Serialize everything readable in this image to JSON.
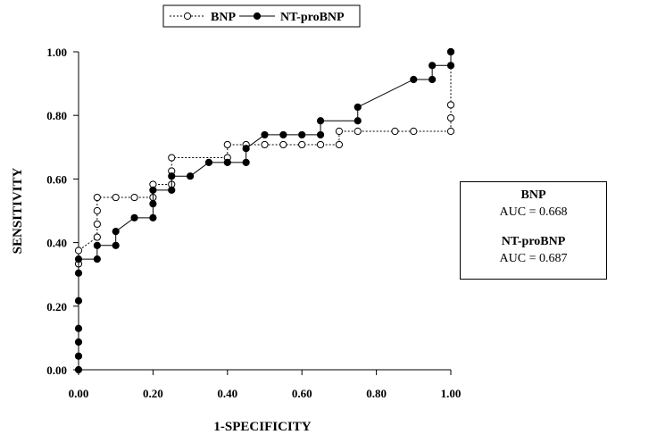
{
  "chart_data": {
    "type": "line",
    "title": "",
    "xlabel": "1-SPECIFICITY",
    "ylabel": "SENSITIVITY",
    "xlim": [
      0,
      1
    ],
    "ylim": [
      0,
      1
    ],
    "x_ticks": [
      "0.00",
      "0.20",
      "0.40",
      "0.60",
      "0.80",
      "1.00"
    ],
    "y_ticks": [
      "0.00",
      "0.20",
      "0.40",
      "0.60",
      "0.80",
      "1.00"
    ],
    "grid": false,
    "legend_position": "top-left",
    "series": [
      {
        "name": "BNP",
        "marker": "open-circle",
        "line_style": "dotted",
        "points": [
          [
            0.0,
            0.333
          ],
          [
            0.0,
            0.375
          ],
          [
            0.05,
            0.417
          ],
          [
            0.05,
            0.458
          ],
          [
            0.05,
            0.5
          ],
          [
            0.05,
            0.542
          ],
          [
            0.1,
            0.542
          ],
          [
            0.15,
            0.542
          ],
          [
            0.2,
            0.542
          ],
          [
            0.2,
            0.583
          ],
          [
            0.25,
            0.583
          ],
          [
            0.25,
            0.625
          ],
          [
            0.25,
            0.667
          ],
          [
            0.4,
            0.667
          ],
          [
            0.4,
            0.708
          ],
          [
            0.45,
            0.708
          ],
          [
            0.5,
            0.708
          ],
          [
            0.55,
            0.708
          ],
          [
            0.6,
            0.708
          ],
          [
            0.65,
            0.708
          ],
          [
            0.7,
            0.708
          ],
          [
            0.7,
            0.75
          ],
          [
            0.75,
            0.75
          ],
          [
            0.85,
            0.75
          ],
          [
            0.9,
            0.75
          ],
          [
            1.0,
            0.75
          ],
          [
            1.0,
            0.792
          ],
          [
            1.0,
            0.833
          ],
          [
            1.0,
            1.0
          ]
        ]
      },
      {
        "name": "NT-proBNP",
        "marker": "filled-circle",
        "line_style": "solid",
        "points": [
          [
            0.0,
            0.0
          ],
          [
            0.0,
            0.043
          ],
          [
            0.0,
            0.087
          ],
          [
            0.0,
            0.13
          ],
          [
            0.0,
            0.217
          ],
          [
            0.0,
            0.304
          ],
          [
            0.0,
            0.348
          ],
          [
            0.05,
            0.348
          ],
          [
            0.05,
            0.391
          ],
          [
            0.1,
            0.391
          ],
          [
            0.1,
            0.435
          ],
          [
            0.15,
            0.478
          ],
          [
            0.2,
            0.478
          ],
          [
            0.2,
            0.522
          ],
          [
            0.2,
            0.565
          ],
          [
            0.25,
            0.565
          ],
          [
            0.25,
            0.609
          ],
          [
            0.3,
            0.609
          ],
          [
            0.35,
            0.652
          ],
          [
            0.4,
            0.652
          ],
          [
            0.45,
            0.652
          ],
          [
            0.45,
            0.696
          ],
          [
            0.5,
            0.739
          ],
          [
            0.55,
            0.739
          ],
          [
            0.6,
            0.739
          ],
          [
            0.65,
            0.739
          ],
          [
            0.65,
            0.783
          ],
          [
            0.75,
            0.783
          ],
          [
            0.75,
            0.826
          ],
          [
            0.9,
            0.913
          ],
          [
            0.95,
            0.913
          ],
          [
            0.95,
            0.957
          ],
          [
            1.0,
            0.957
          ],
          [
            1.0,
            1.0
          ]
        ]
      }
    ],
    "annotations": {
      "auc_box": [
        {
          "name": "BNP",
          "value": "AUC = 0.668"
        },
        {
          "name": "NT-proBNP",
          "value": "AUC = 0.687"
        }
      ]
    }
  },
  "colors": {
    "line": "#000000",
    "open_marker_fill": "#ffffff",
    "filled_marker_fill": "#000000"
  }
}
